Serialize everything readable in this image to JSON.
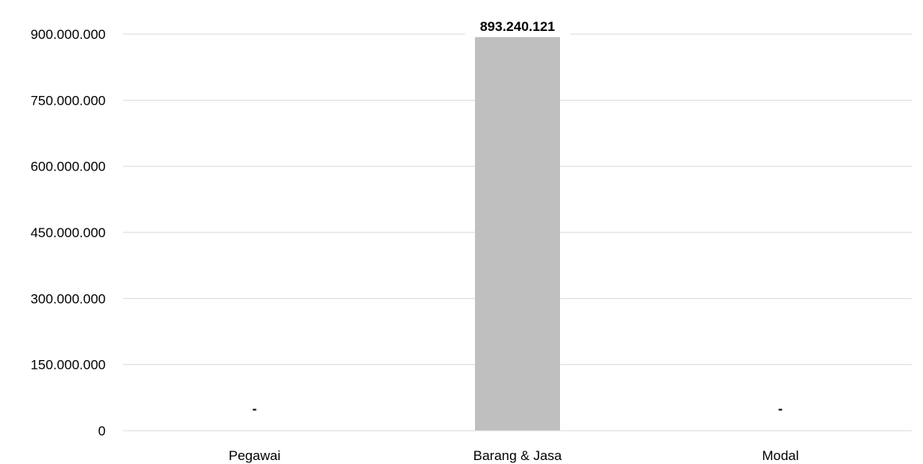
{
  "chart_data": {
    "type": "bar",
    "categories": [
      "Pegawai",
      "Barang & Jasa",
      "Modal"
    ],
    "values": [
      0,
      893240121,
      0
    ],
    "data_labels": [
      "-",
      "893.240.121",
      "-"
    ],
    "yticks": [
      0,
      150000000,
      300000000,
      450000000,
      600000000,
      750000000,
      900000000
    ],
    "ytick_labels": [
      "0",
      "150.000.000",
      "300.000.000",
      "450.000.000",
      "600.000.000",
      "750.000.000",
      "900.000.000"
    ],
    "ylim": [
      0,
      900000000
    ],
    "grid": true,
    "legend": "none",
    "bar_color": "#bfbfbf",
    "grid_color": "#d9d9d9",
    "title": "",
    "xlabel": "",
    "ylabel": ""
  }
}
